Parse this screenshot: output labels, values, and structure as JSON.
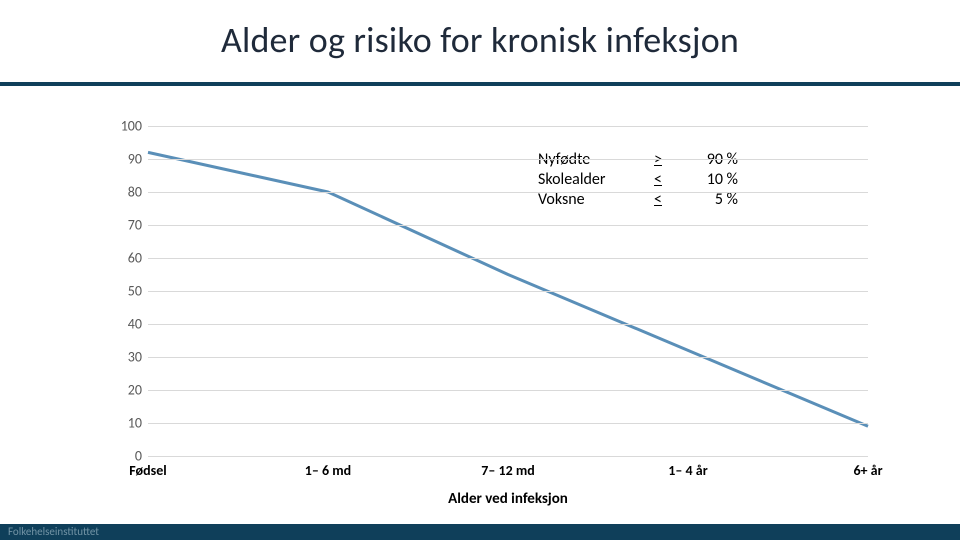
{
  "title": "Alder og risiko for kronisk infeksjon",
  "accent_color": "#0f3f5a",
  "chart": {
    "type": "line",
    "background_color": "#ffffff",
    "grid_color": "#d9d9d9",
    "ylim": [
      0,
      100
    ],
    "ytick_step": 10,
    "yticks": [
      0,
      10,
      20,
      30,
      40,
      50,
      60,
      70,
      80,
      90,
      100
    ],
    "x_categories": [
      "Fødsel",
      "1– 6 md",
      "7– 12 md",
      "1– 4 år",
      "6+ år"
    ],
    "series": {
      "values": [
        92,
        80,
        55,
        32,
        9
      ],
      "color": "#5a8fb8",
      "width": 3
    },
    "x_axis_title": "Alder ved infeksjon",
    "label_fontsize": 14,
    "xlab_fontsize": 14,
    "xlab_weight": "700",
    "title_fontsize": 15
  },
  "annotation": {
    "rows": [
      {
        "label": "Nyfødte",
        "op": ">",
        "pct": "90 %"
      },
      {
        "label": "Skolealder",
        "op": "<",
        "pct": "10 %"
      },
      {
        "label": "Voksne",
        "op": "<",
        "pct": "5 %"
      }
    ],
    "fontsize": 16,
    "underline_ops": true
  },
  "footer_logo": "Folkehelseinstituttet"
}
